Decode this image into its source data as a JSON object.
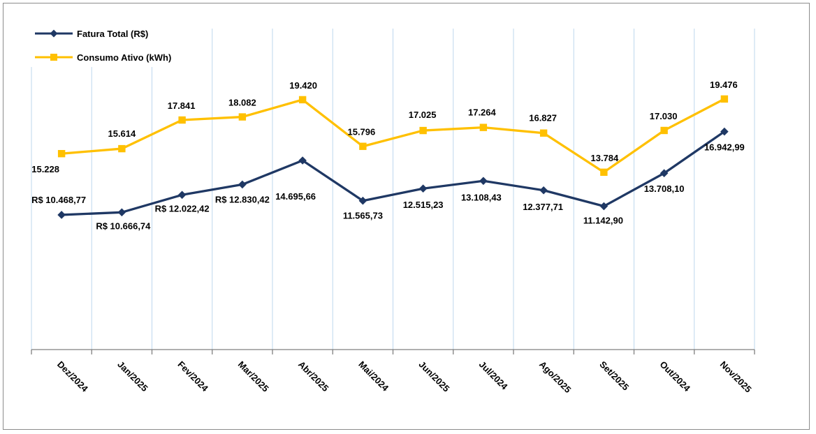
{
  "chart_data": {
    "type": "line",
    "title": "",
    "xlabel": "",
    "ylabel": "",
    "ylim": [
      0,
      25000
    ],
    "grid": "vertical-only",
    "legend_position": "top-left",
    "categories": [
      "Dez/2024",
      "Jan/2025",
      "Fev/2024",
      "Mar/2025",
      "Abr/2025",
      "Mai/2024",
      "Jun/2025",
      "Jul/2024",
      "Ago/2025",
      "Set/2025",
      "Out/2024",
      "Nov/2025"
    ],
    "series": [
      {
        "name": "Fatura Total (R$)",
        "color": "#1F3864",
        "marker": "diamond",
        "values": [
          10468.77,
          10666.74,
          12022.42,
          12830.42,
          14695.66,
          11565.73,
          12515.23,
          13108.43,
          12377.71,
          11142.9,
          13708.1,
          16942.99
        ],
        "labels": [
          "R$ 10.468,77",
          "R$ 10.666,74",
          "R$ 12.022,42",
          "R$ 12.830,42",
          "14.695,66",
          "11.565,73",
          "12.515,23",
          "13.108,43",
          "12.377,71",
          "11.142,90",
          "13.708,10",
          "16.942,99"
        ],
        "label_offsets": [
          [
            -4,
            -17
          ],
          [
            2,
            24
          ],
          [
            0,
            24
          ],
          [
            0,
            26
          ],
          [
            -10,
            56
          ],
          [
            0,
            26
          ],
          [
            0,
            28
          ],
          [
            -3,
            28
          ],
          [
            -1,
            28
          ],
          [
            -1,
            25
          ],
          [
            0,
            27
          ],
          [
            0,
            27
          ]
        ]
      },
      {
        "name": "Consumo Ativo (kWh)",
        "color": "#FFC000",
        "marker": "square",
        "values": [
          15228,
          15614,
          17841,
          18082,
          19420,
          15796,
          17025,
          17264,
          16827,
          13784,
          17030,
          19476
        ],
        "labels": [
          "15.228",
          "15.614",
          "17.841",
          "18.082",
          "19.420",
          "15.796",
          "17.025",
          "17.264",
          "16.827",
          "13.784",
          "17.030",
          "19.476"
        ],
        "label_offsets": [
          [
            -23,
            27
          ],
          [
            0,
            -17
          ],
          [
            -1,
            -16
          ],
          [
            0,
            -16
          ],
          [
            1,
            -16
          ],
          [
            -2,
            -16
          ],
          [
            -1,
            -18
          ],
          [
            -2,
            -17
          ],
          [
            -1,
            -17
          ],
          [
            1,
            -16
          ],
          [
            -1,
            -16
          ],
          [
            -1,
            -16
          ]
        ]
      }
    ],
    "colors": {
      "gridline": "#BDD7EE",
      "axis": "#808080",
      "label": "#000000",
      "frame_border": "#8C8C8C",
      "background": "#FFFFFF"
    }
  }
}
